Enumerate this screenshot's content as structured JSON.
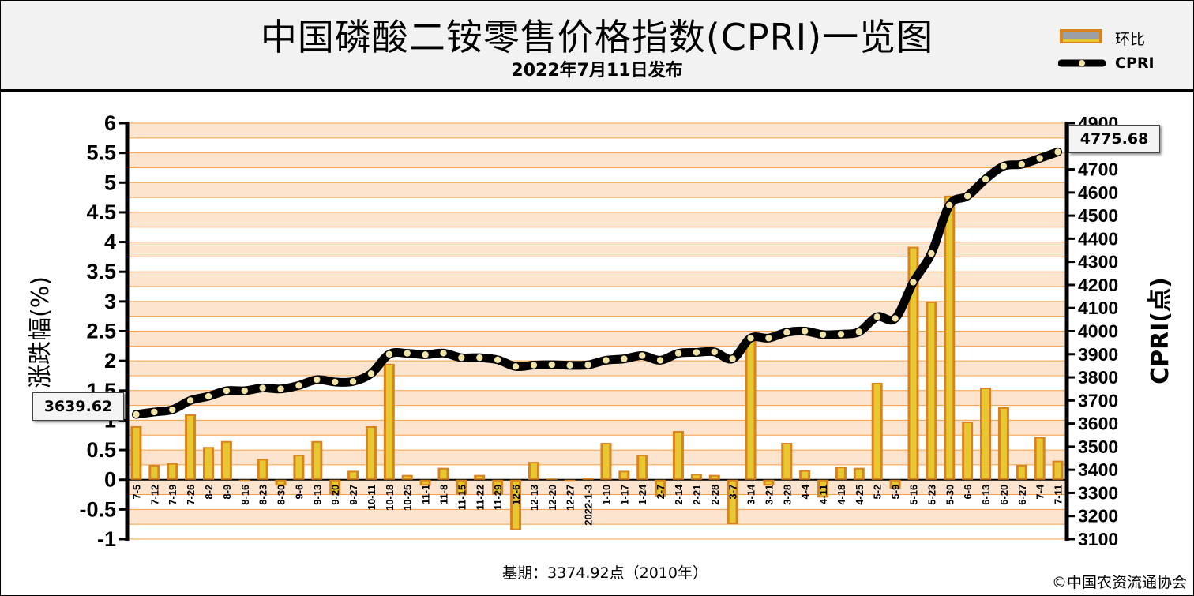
{
  "header": {
    "title": "中国磷酸二铵零售价格指数(CPRI)一览图",
    "subtitle": "2022年7月11日发布"
  },
  "legend": {
    "bar_label": "环比",
    "line_label": "CPRI"
  },
  "callouts": {
    "first": "3639.62",
    "last": "4775.68"
  },
  "footer": {
    "base": "基期：3374.92点（2010年）",
    "copyright": "©中国农资流通协会"
  },
  "colors": {
    "band_light": "#fde4cf",
    "grid_line": "#f5a047",
    "bar_outer": "#d9831e",
    "bar_inner": "#e8c830",
    "line": "#000000",
    "marker": "#f2e4a6"
  },
  "chart_data": {
    "type": "bar+line",
    "left_axis": {
      "label": "涨跌幅(%)",
      "ylim": [
        -1,
        6
      ],
      "ticks": [
        "-1",
        "-0.5",
        "0",
        "0.5",
        "1",
        "1.5",
        "2",
        "2.5",
        "3",
        "3.5",
        "4",
        "4.5",
        "5",
        "5.5",
        "6"
      ]
    },
    "right_axis": {
      "label": "CPRI(点)",
      "ylim": [
        3100,
        4900
      ],
      "ticks": [
        "3100",
        "3200",
        "3300",
        "3400",
        "3500",
        "3600",
        "3700",
        "3800",
        "3900",
        "4000",
        "4100",
        "4200",
        "4300",
        "4400",
        "4500",
        "4600",
        "4700",
        "4800",
        "4900"
      ]
    },
    "categories": [
      "7-5",
      "7-12",
      "7-19",
      "7-26",
      "8-2",
      "8-9",
      "8-16",
      "8-23",
      "8-30",
      "9-6",
      "9-13",
      "9-20",
      "9-27",
      "10-11",
      "10-18",
      "10-25",
      "11-1",
      "11-8",
      "11-15",
      "11-22",
      "11-29",
      "12-6",
      "12-13",
      "12-20",
      "12-27",
      "2022-1-3",
      "1-10",
      "1-17",
      "1-24",
      "2-7",
      "2-14",
      "2-21",
      "2-28",
      "3-7",
      "3-14",
      "3-21",
      "3-28",
      "4-4",
      "4-11",
      "4-18",
      "4-25",
      "5-2",
      "5-9",
      "5-16",
      "5-23",
      "5-30",
      "6-6",
      "6-13",
      "6-20",
      "6-27",
      "7-4",
      "7-11"
    ],
    "series": [
      {
        "name": "环比",
        "type": "bar",
        "axis": "left",
        "values": [
          0.9,
          0.25,
          0.28,
          1.1,
          0.55,
          0.65,
          0,
          0.35,
          -0.1,
          0.42,
          0.65,
          -0.25,
          0.15,
          0.9,
          1.95,
          0.08,
          -0.1,
          0.2,
          -0.25,
          0.08,
          -0.25,
          -0.85,
          0.3,
          0.02,
          -0.02,
          0.03,
          0.62,
          0.15,
          0.42,
          -0.28,
          0.82,
          0.1,
          0.08,
          -0.75,
          2.35,
          -0.1,
          0.62,
          0.16,
          -0.3,
          0.22,
          0.2,
          1.63,
          -0.15,
          3.92,
          3.0,
          4.78,
          0.98,
          1.55,
          1.22,
          0.25,
          0.72,
          0.32
        ]
      },
      {
        "name": "CPRI",
        "type": "line",
        "axis": "right",
        "values": [
          3639.62,
          3650,
          3660,
          3700,
          3718,
          3742,
          3742,
          3754,
          3750,
          3765,
          3790,
          3780,
          3782,
          3816,
          3900,
          3904,
          3898,
          3905,
          3885,
          3885,
          3876,
          3847,
          3853,
          3855,
          3852,
          3854,
          3874,
          3880,
          3894,
          3874,
          3904,
          3908,
          3910,
          3880,
          3970,
          3970,
          3995,
          4000,
          3985,
          3987,
          3997,
          4062,
          4055,
          4212,
          4336,
          4545,
          4585,
          4658,
          4714,
          4722,
          4748,
          4775.68
        ]
      }
    ]
  }
}
